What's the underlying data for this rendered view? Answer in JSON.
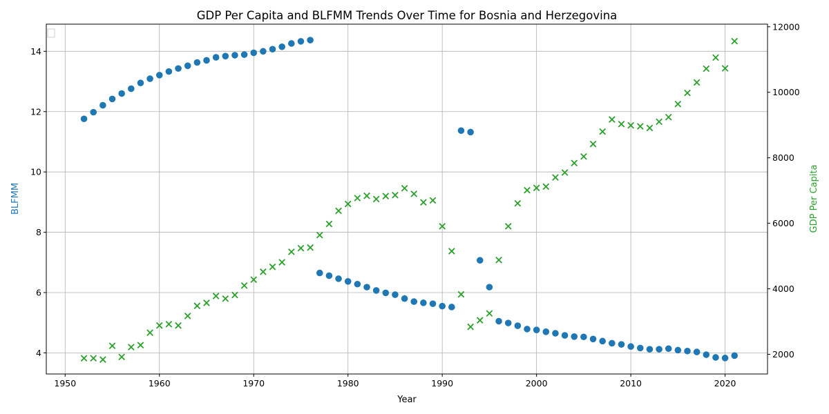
{
  "chart_data": {
    "type": "scatter",
    "title": "GDP Per Capita and BLFMM Trends Over Time for Bosnia and Herzegovina",
    "xlabel": "Year",
    "ylabel_left": "BLFMM",
    "ylabel_right": "GDP Per Capita",
    "xlim": [
      1948,
      2024.5
    ],
    "ylim_left": [
      3.3,
      14.9
    ],
    "ylim_right": [
      1400,
      12080
    ],
    "x_ticks": [
      1950,
      1960,
      1970,
      1980,
      1990,
      2000,
      2010,
      2020
    ],
    "y_ticks_left": [
      4,
      6,
      8,
      10,
      12,
      14
    ],
    "y_ticks_right": [
      2000,
      4000,
      6000,
      8000,
      10000,
      12000
    ],
    "grid": true,
    "legend": "top-left (empty)",
    "colors": {
      "blfmm": "#1f77b4",
      "gdp": "#2ca02c"
    },
    "series": [
      {
        "name": "BLFMM",
        "axis": "left",
        "marker": "circle",
        "x": [
          1952,
          1953,
          1954,
          1955,
          1956,
          1957,
          1958,
          1959,
          1960,
          1961,
          1962,
          1963,
          1964,
          1965,
          1966,
          1967,
          1968,
          1969,
          1970,
          1971,
          1972,
          1973,
          1974,
          1975,
          1976,
          1977,
          1978,
          1979,
          1980,
          1981,
          1982,
          1983,
          1984,
          1985,
          1986,
          1987,
          1988,
          1989,
          1990,
          1991,
          1992,
          1993,
          1994,
          1995,
          1996,
          1997,
          1998,
          1999,
          2000,
          2001,
          2002,
          2003,
          2004,
          2005,
          2006,
          2007,
          2008,
          2009,
          2010,
          2011,
          2012,
          2013,
          2014,
          2015,
          2016,
          2017,
          2018,
          2019,
          2020,
          2021
        ],
        "y": [
          11.76,
          11.98,
          12.21,
          12.42,
          12.6,
          12.76,
          12.95,
          13.09,
          13.21,
          13.33,
          13.43,
          13.52,
          13.63,
          13.7,
          13.8,
          13.84,
          13.87,
          13.89,
          13.95,
          14.0,
          14.07,
          14.15,
          14.26,
          14.33,
          14.37,
          6.65,
          6.56,
          6.46,
          6.37,
          6.28,
          6.18,
          6.07,
          5.99,
          5.93,
          5.8,
          5.7,
          5.66,
          5.63,
          5.55,
          5.52,
          11.37,
          11.32,
          7.07,
          6.18,
          5.05,
          4.99,
          4.9,
          4.79,
          4.76,
          4.7,
          4.65,
          4.58,
          4.54,
          4.53,
          4.46,
          4.39,
          4.32,
          4.28,
          4.21,
          4.16,
          4.12,
          4.12,
          4.14,
          4.09,
          4.06,
          4.03,
          3.94,
          3.85,
          3.83,
          3.91
        ]
      },
      {
        "name": "GDP Per Capita",
        "axis": "right",
        "marker": "x",
        "x": [
          1952,
          1953,
          1954,
          1955,
          1956,
          1957,
          1958,
          1959,
          1960,
          1961,
          1962,
          1963,
          1964,
          1965,
          1966,
          1967,
          1968,
          1969,
          1970,
          1971,
          1972,
          1973,
          1974,
          1975,
          1976,
          1977,
          1978,
          1979,
          1980,
          1981,
          1982,
          1983,
          1984,
          1985,
          1986,
          1987,
          1988,
          1989,
          1990,
          1991,
          1992,
          1993,
          1994,
          1995,
          1996,
          1997,
          1998,
          1999,
          2000,
          2001,
          2002,
          2003,
          2004,
          2005,
          2006,
          2007,
          2008,
          2009,
          2010,
          2011,
          2012,
          2013,
          2014,
          2015,
          2016,
          2017,
          2018,
          2019,
          2020,
          2021
        ],
        "y": [
          1880,
          1880,
          1840,
          2260,
          1920,
          2220,
          2280,
          2660,
          2880,
          2920,
          2880,
          3170,
          3480,
          3570,
          3780,
          3700,
          3810,
          4100,
          4280,
          4520,
          4670,
          4810,
          5130,
          5240,
          5260,
          5640,
          5980,
          6380,
          6590,
          6770,
          6840,
          6740,
          6830,
          6860,
          7070,
          6900,
          6640,
          6700,
          5910,
          5150,
          3830,
          2840,
          3040,
          3250,
          4880,
          5910,
          6610,
          7010,
          7080,
          7120,
          7400,
          7550,
          7840,
          8040,
          8420,
          8800,
          9170,
          9030,
          8990,
          8960,
          8910,
          9100,
          9240,
          9640,
          9980,
          10300,
          10720,
          11060,
          10730,
          11560
        ]
      }
    ]
  }
}
